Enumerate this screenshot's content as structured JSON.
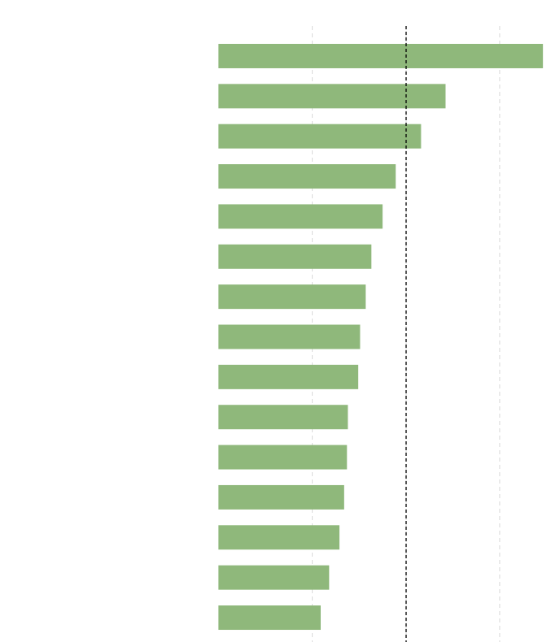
{
  "chart_data": {
    "type": "barh",
    "categories": [
      null,
      null,
      null,
      null,
      null,
      null,
      null,
      null,
      null,
      null,
      null,
      null,
      null,
      null,
      null
    ],
    "values": [
      3.46,
      2.42,
      2.16,
      1.89,
      1.75,
      1.63,
      1.57,
      1.51,
      1.49,
      1.38,
      1.37,
      1.34,
      1.29,
      1.18,
      1.09
    ],
    "color": "#8fb87b",
    "xlim": [
      0,
      3.47
    ],
    "xticks": [
      1,
      2,
      3
    ],
    "grid": true,
    "reference_line": 2,
    "reference_color": "#000000"
  }
}
